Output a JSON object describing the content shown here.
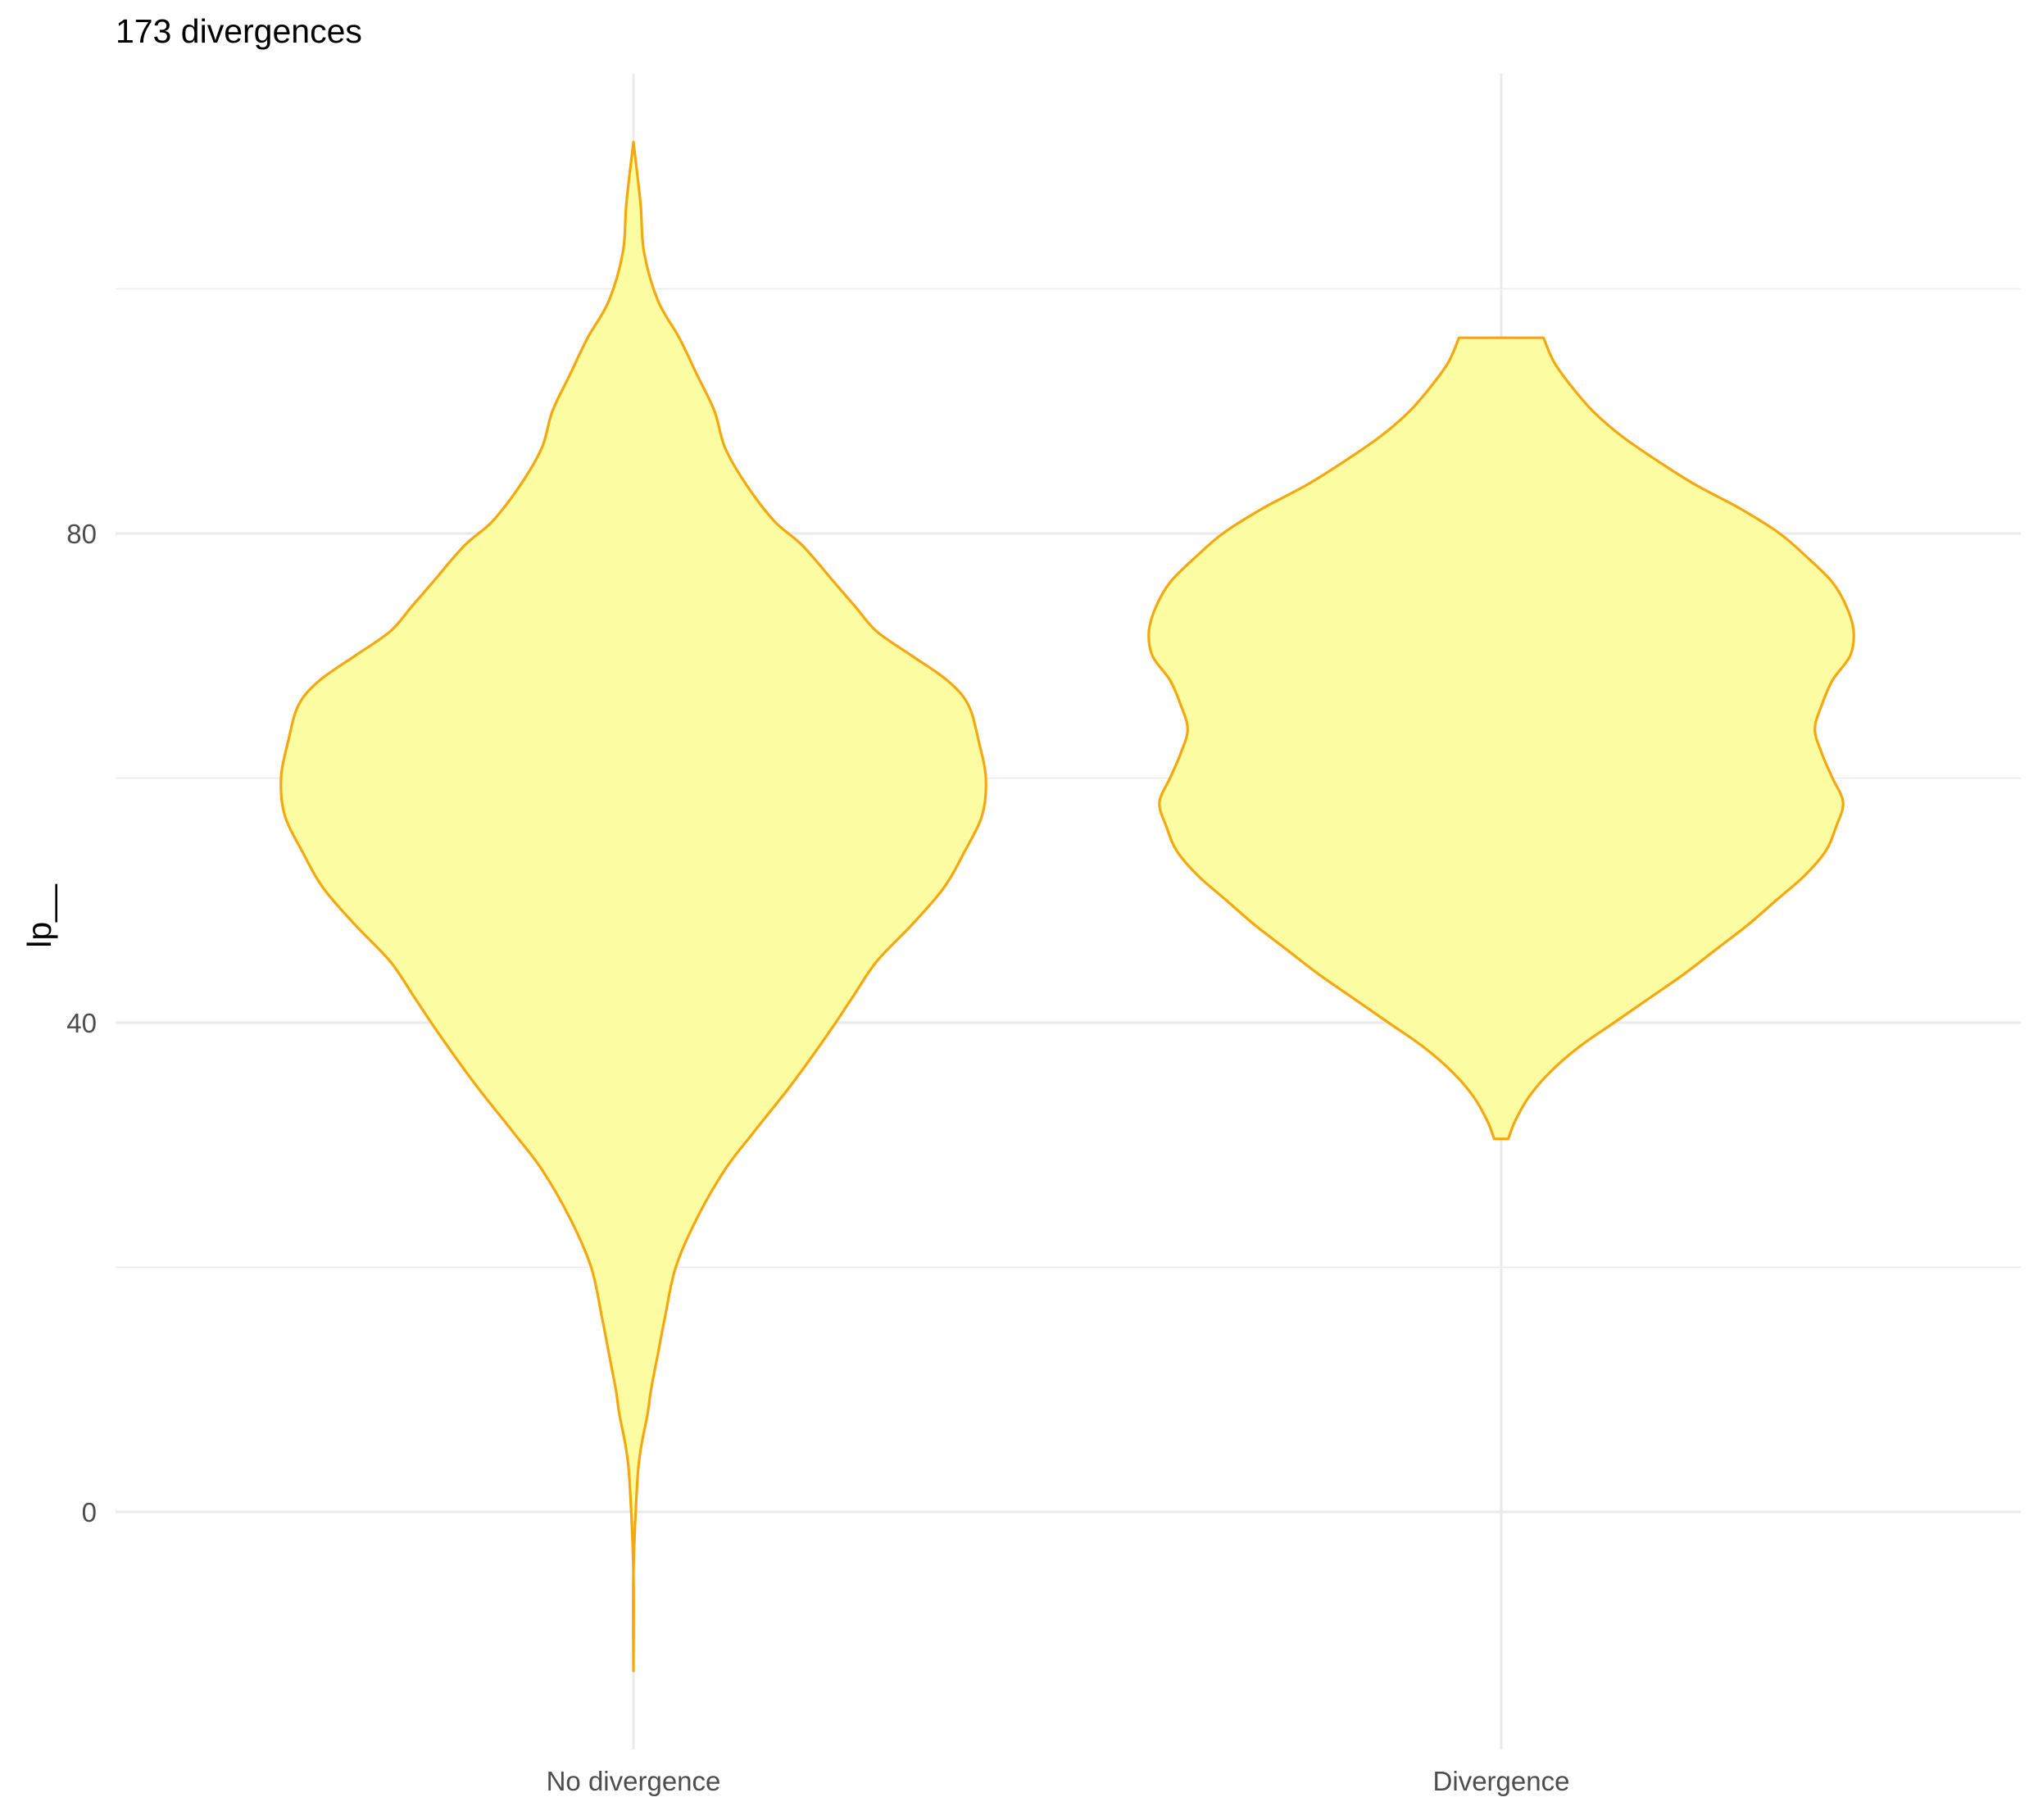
{
  "chart_data": {
    "type": "violin",
    "title": "173 divergences",
    "xlabel": "",
    "ylabel": "lp__",
    "categories": [
      "No divergence",
      "Divergence"
    ],
    "ylim": [
      -15,
      112
    ],
    "yticks": [
      0,
      40,
      80
    ],
    "grid": true,
    "legend": "none",
    "colors": {
      "fill": "#FCFDA2",
      "stroke": "#F5A80E",
      "grid": "#EBEBEB"
    },
    "series": [
      {
        "category": "No divergence",
        "ymin": -13,
        "ymax": 112,
        "profile": [
          [
            -13,
            0.0
          ],
          [
            -5,
            0.0
          ],
          [
            2,
            0.01
          ],
          [
            5,
            0.02
          ],
          [
            8,
            0.04
          ],
          [
            10,
            0.05
          ],
          [
            13,
            0.07
          ],
          [
            16,
            0.09
          ],
          [
            20,
            0.12
          ],
          [
            24,
            0.18
          ],
          [
            28,
            0.26
          ],
          [
            31,
            0.34
          ],
          [
            35,
            0.45
          ],
          [
            39,
            0.55
          ],
          [
            42,
            0.62
          ],
          [
            45,
            0.69
          ],
          [
            48,
            0.79
          ],
          [
            51,
            0.88
          ],
          [
            54,
            0.94
          ],
          [
            57,
            0.99
          ],
          [
            60,
            1.0
          ],
          [
            63,
            0.98
          ],
          [
            66,
            0.95
          ],
          [
            68,
            0.89
          ],
          [
            70,
            0.79
          ],
          [
            72,
            0.69
          ],
          [
            74,
            0.63
          ],
          [
            76,
            0.57
          ],
          [
            79,
            0.48
          ],
          [
            81,
            0.4
          ],
          [
            84,
            0.32
          ],
          [
            87,
            0.26
          ],
          [
            90,
            0.23
          ],
          [
            93,
            0.18
          ],
          [
            96,
            0.13
          ],
          [
            99,
            0.07
          ],
          [
            103,
            0.03
          ],
          [
            107,
            0.02
          ],
          [
            112,
            0.0
          ]
        ]
      },
      {
        "category": "Divergence",
        "ymin": 30.5,
        "ymax": 96,
        "profile": [
          [
            30.5,
            0.02
          ],
          [
            32,
            0.04
          ],
          [
            34,
            0.08
          ],
          [
            36,
            0.14
          ],
          [
            38,
            0.22
          ],
          [
            40,
            0.32
          ],
          [
            42,
            0.42
          ],
          [
            44,
            0.52
          ],
          [
            46,
            0.61
          ],
          [
            48,
            0.7
          ],
          [
            50,
            0.78
          ],
          [
            52,
            0.86
          ],
          [
            54,
            0.92
          ],
          [
            56,
            0.95
          ],
          [
            58,
            0.97
          ],
          [
            60,
            0.94
          ],
          [
            62,
            0.91
          ],
          [
            64,
            0.89
          ],
          [
            66,
            0.91
          ],
          [
            68,
            0.94
          ],
          [
            70,
            0.99
          ],
          [
            72,
            1.0
          ],
          [
            74,
            0.98
          ],
          [
            76,
            0.94
          ],
          [
            78,
            0.87
          ],
          [
            80,
            0.79
          ],
          [
            82,
            0.68
          ],
          [
            84,
            0.55
          ],
          [
            86,
            0.44
          ],
          [
            88,
            0.34
          ],
          [
            90,
            0.26
          ],
          [
            92,
            0.2
          ],
          [
            94,
            0.15
          ],
          [
            96,
            0.12
          ]
        ]
      }
    ]
  }
}
